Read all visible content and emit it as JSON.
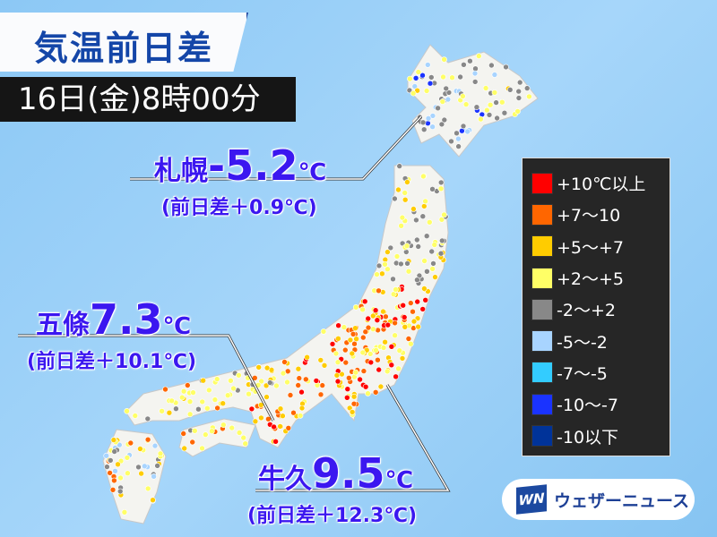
{
  "header": {
    "title": "気温前日差",
    "datetime": "16日(金)8時00分"
  },
  "callouts": [
    {
      "name": "札幌",
      "value": "-5.2",
      "unit": "℃",
      "diff": "(前日差＋0.9℃)"
    },
    {
      "name": "五條",
      "value": "7.3",
      "unit": "℃",
      "diff": "(前日差＋10.1℃)"
    },
    {
      "name": "牛久",
      "value": "9.5",
      "unit": "℃",
      "diff": "(前日差＋12.3℃)"
    }
  ],
  "legend": [
    {
      "label": "+10℃以上",
      "color": "#ff0000"
    },
    {
      "label": "+7〜10",
      "color": "#ff6600"
    },
    {
      "label": "+5〜+7",
      "color": "#ffcc00"
    },
    {
      "label": "+2〜+5",
      "color": "#ffff66"
    },
    {
      "label": "-2〜+2",
      "color": "#888888"
    },
    {
      "label": "-5〜-2",
      "color": "#a8d4ff"
    },
    {
      "label": "-7〜-5",
      "color": "#33ccff"
    },
    {
      "label": "-10〜-7",
      "color": "#1a33ff"
    },
    {
      "label": "-10以下",
      "color": "#003399"
    }
  ],
  "brand": {
    "mark": "WN",
    "name": "ウェザーニュース"
  }
}
